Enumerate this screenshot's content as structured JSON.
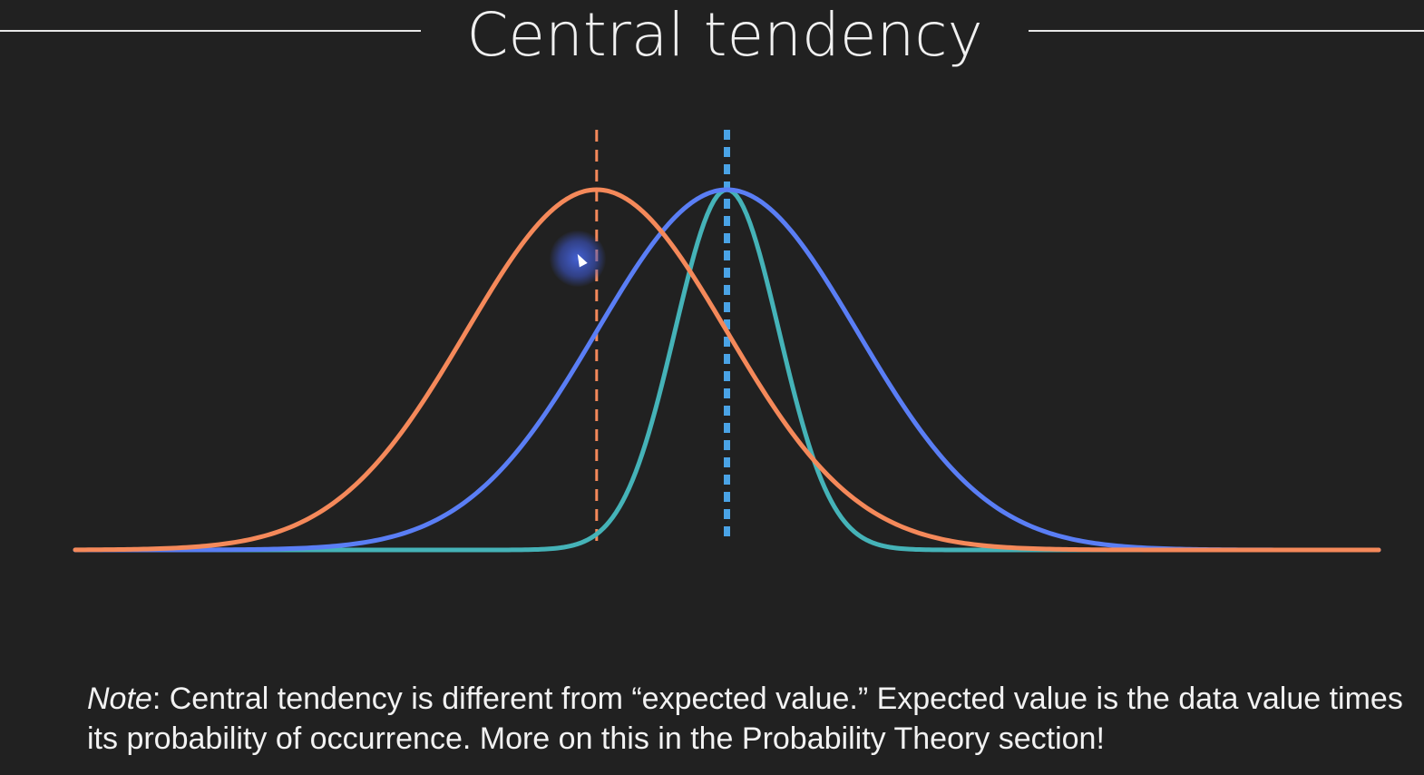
{
  "slide": {
    "title": "Central tendency",
    "note": {
      "label": "Note",
      "text": ": Central tendency is different from “expected value.” Expected value is the data value times its probability of occurrence. More on this in the Probability Theory section!"
    }
  },
  "colors": {
    "background": "#212121",
    "orange": "#f5895a",
    "blue": "#5a7ef5",
    "teal": "#45b3b8",
    "blue_marker": "#4aa3e6"
  },
  "chart_data": {
    "type": "line",
    "title": "",
    "xlabel": "",
    "ylabel": "",
    "axes_visible": false,
    "xlim": [
      -5,
      5
    ],
    "ylim": [
      0,
      1
    ],
    "series": [
      {
        "key": "orange",
        "distribution": "normal",
        "mean": -1,
        "sd": 1.0,
        "peak": 1.0,
        "color": "#f5895a"
      },
      {
        "key": "blue",
        "distribution": "normal",
        "mean": 0,
        "sd": 1.0,
        "peak": 1.0,
        "color": "#5a7ef5"
      },
      {
        "key": "teal",
        "distribution": "normal",
        "mean": 0,
        "sd": 0.4,
        "peak": 1.0,
        "color": "#45b3b8"
      }
    ],
    "reference_lines": [
      {
        "key": "orange-mean",
        "x": -1,
        "style": "dashed",
        "color": "#f5895a"
      },
      {
        "key": "blue-mean",
        "x": 0,
        "style": "dashed-thick",
        "color": "#4aa3e6"
      }
    ]
  }
}
